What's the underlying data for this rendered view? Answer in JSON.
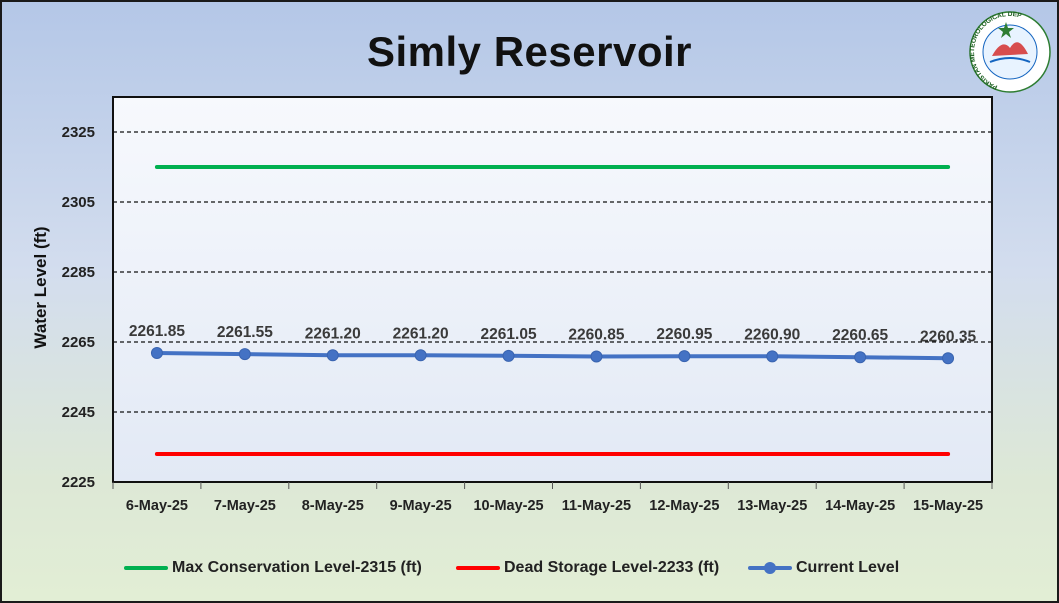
{
  "chart_data": {
    "type": "line",
    "title": "Simly Reservoir",
    "ylabel": "Water Level (ft)",
    "xlabel": "",
    "categories": [
      "6-May-25",
      "7-May-25",
      "8-May-25",
      "9-May-25",
      "10-May-25",
      "11-May-25",
      "12-May-25",
      "13-May-25",
      "14-May-25",
      "15-May-25"
    ],
    "ylim": [
      2225,
      2335
    ],
    "yticks": [
      2225,
      2245,
      2265,
      2285,
      2305,
      2325
    ],
    "grid": "horizontal-dashed",
    "legend_position": "bottom",
    "series": [
      {
        "name": "Max Conservation Level-2315 (ft)",
        "color": "#00b050",
        "marker": false,
        "values": [
          2315,
          2315,
          2315,
          2315,
          2315,
          2315,
          2315,
          2315,
          2315,
          2315
        ]
      },
      {
        "name": "Dead Storage Level-2233 (ft)",
        "color": "#ff0000",
        "marker": false,
        "values": [
          2233,
          2233,
          2233,
          2233,
          2233,
          2233,
          2233,
          2233,
          2233,
          2233
        ]
      },
      {
        "name": "Current Level",
        "color": "#4472c4",
        "marker": true,
        "values": [
          2261.85,
          2261.55,
          2261.2,
          2261.2,
          2261.05,
          2260.85,
          2260.95,
          2260.9,
          2260.65,
          2260.35
        ],
        "data_labels": [
          "2261.85",
          "2261.55",
          "2261.20",
          "2261.20",
          "2261.05",
          "2260.85",
          "2260.95",
          "2260.90",
          "2260.65",
          "2260.35"
        ]
      }
    ]
  },
  "logo": {
    "text": "PAKISTAN METEOROLOGICAL DEPARTMENT"
  }
}
